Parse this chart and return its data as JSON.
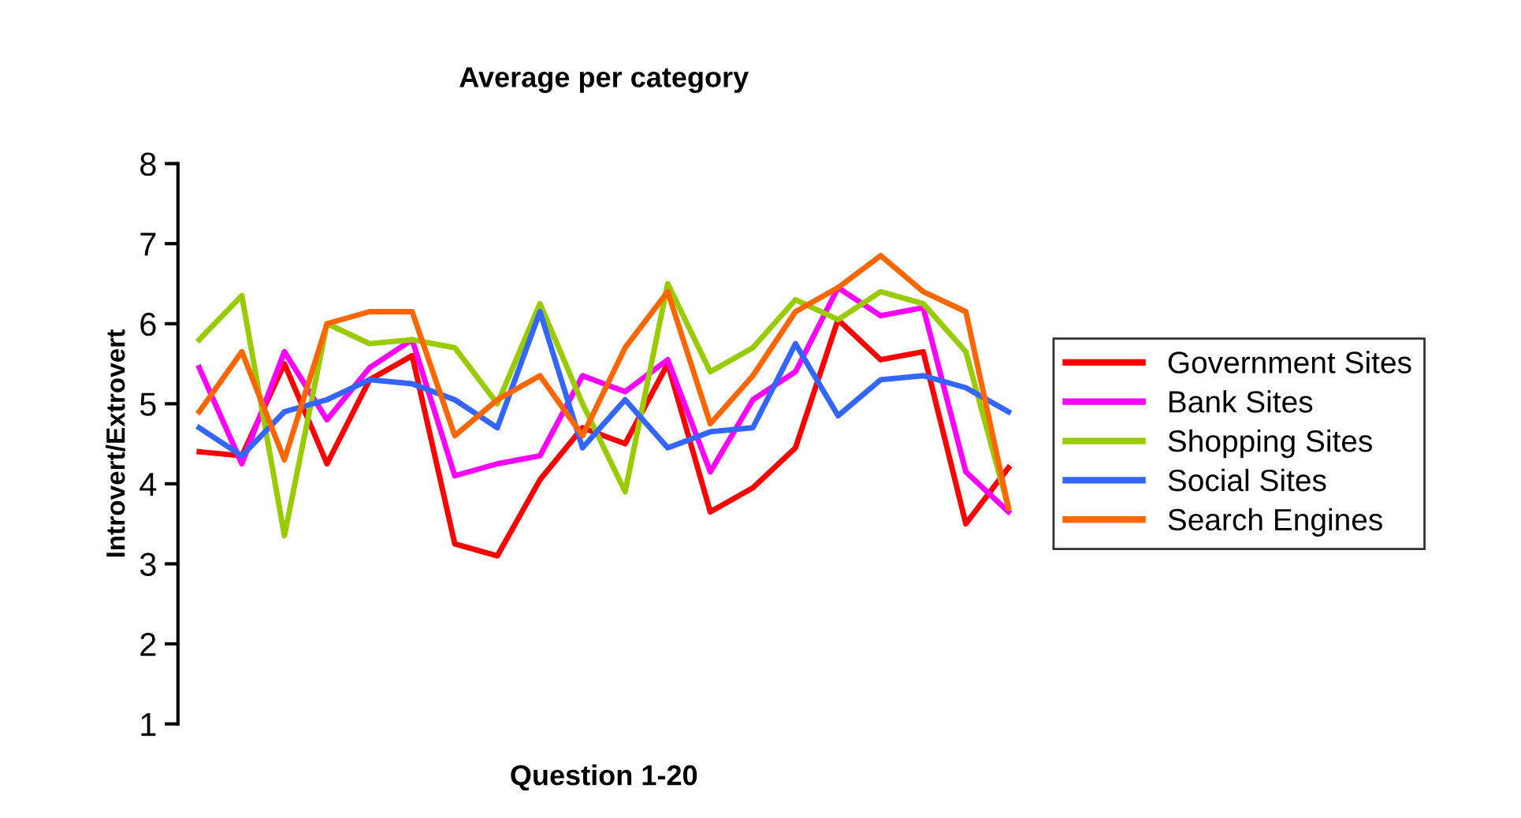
{
  "chart_data": {
    "type": "line",
    "title": "Average per category",
    "xlabel": "Question 1-20",
    "ylabel": "Introvert/Extrovert",
    "categories": [
      null,
      null,
      null,
      null,
      null,
      null,
      null,
      null,
      null,
      null,
      null,
      null,
      null,
      null,
      null,
      null,
      null,
      null,
      null,
      null
    ],
    "series": [
      {
        "name": "Government Sites",
        "color": "#ff0000",
        "values": [
          4.4,
          4.35,
          5.5,
          4.25,
          5.3,
          5.6,
          3.25,
          3.1,
          4.05,
          4.7,
          4.5,
          5.5,
          3.65,
          3.95,
          4.45,
          6.05,
          5.55,
          5.65,
          3.5,
          4.2
        ]
      },
      {
        "name": "Bank Sites",
        "color": "#ff00ff",
        "values": [
          5.45,
          4.25,
          5.65,
          4.8,
          5.45,
          5.8,
          4.1,
          4.25,
          4.35,
          5.35,
          5.15,
          5.55,
          4.15,
          5.05,
          5.4,
          6.45,
          6.1,
          6.2,
          4.15,
          3.65
        ]
      },
      {
        "name": "Shopping Sites",
        "color": "#99cc00",
        "values": [
          5.8,
          6.35,
          3.35,
          6.0,
          5.75,
          5.8,
          5.7,
          5.0,
          6.25,
          5.0,
          3.9,
          6.5,
          5.4,
          5.7,
          6.3,
          6.05,
          6.4,
          6.25,
          5.65,
          3.7
        ]
      },
      {
        "name": "Social Sites",
        "color": "#3366ff",
        "values": [
          4.7,
          4.35,
          4.9,
          5.05,
          5.3,
          5.25,
          5.05,
          4.7,
          6.15,
          4.45,
          5.05,
          4.45,
          4.65,
          4.7,
          5.75,
          4.85,
          5.3,
          5.35,
          5.2,
          4.9
        ]
      },
      {
        "name": "Search Engines",
        "color": "#ff6600",
        "values": [
          4.9,
          5.65,
          4.3,
          6.0,
          6.15,
          6.15,
          4.6,
          5.05,
          5.35,
          4.6,
          5.7,
          6.4,
          4.75,
          5.35,
          6.15,
          6.45,
          6.85,
          6.4,
          6.15,
          3.7
        ]
      }
    ],
    "ylim": [
      1,
      8
    ],
    "yticks": [
      1,
      2,
      3,
      4,
      5,
      6,
      7,
      8
    ],
    "tick_labels": "y",
    "grid": false,
    "legend": "right",
    "marker": "none",
    "line_style": "solid"
  }
}
